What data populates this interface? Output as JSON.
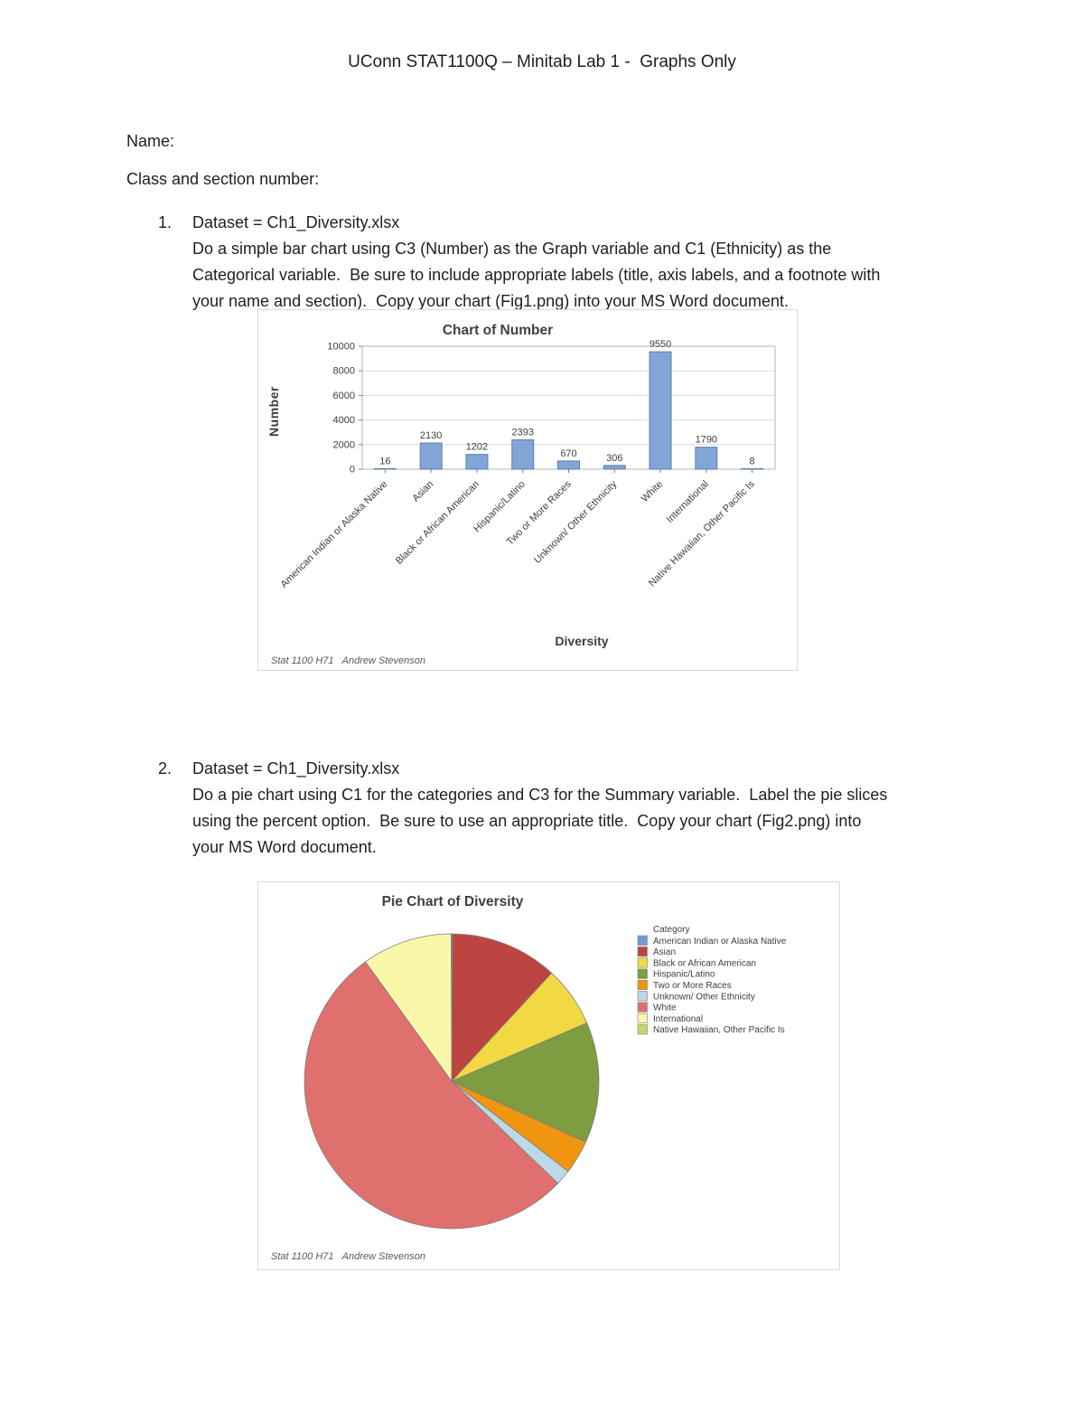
{
  "page": {
    "title": "UConn STAT1100Q – Minitab Lab 1 -  Graphs Only",
    "name_label": "Name:",
    "class_label": "Class and section number:"
  },
  "items": [
    {
      "number": "1.",
      "dataset": "Dataset = Ch1_Diversity.xlsx",
      "lines": [
        "Do a simple bar chart using C3 (Number) as the Graph variable and C1 (Ethnicity) as the",
        "Categorical variable.  Be sure to include appropriate labels (title, axis labels, and a footnote with",
        "your name and section).  Copy your chart (Fig1.png) into your MS Word document."
      ]
    },
    {
      "number": "2.",
      "dataset": "Dataset = Ch1_Diversity.xlsx",
      "lines": [
        "Do a pie chart using C1 for the categories and C3 for the Summary variable.  Label the pie slices",
        "using the percent option.  Be sure to use an appropriate title.  Copy your chart (Fig2.png) into",
        "your MS Word document."
      ]
    }
  ],
  "chart_data": [
    {
      "type": "bar",
      "title": "Chart of Number",
      "xlabel": "Diversity",
      "ylabel": "Number",
      "footnote": "Stat 1100 H71   Andrew Stevenson",
      "categories": [
        "American Indian or Alaska Native",
        "Asian",
        "Black or African American",
        "Hispanic/Latino",
        "Two or More Races",
        "Unknown/ Other Ethnicity",
        "White",
        "International",
        "Native Hawaiian, Other Pacific Is"
      ],
      "values": [
        16,
        2130,
        1202,
        2393,
        670,
        306,
        9550,
        1790,
        8
      ],
      "bar_labels": [
        "16",
        "2130",
        "1202",
        "2393",
        "670",
        "306",
        "9550",
        "1790",
        "8"
      ],
      "ylim": [
        0,
        10000
      ],
      "yticks": [
        0,
        2000,
        4000,
        6000,
        8000,
        10000
      ],
      "grid": "horizontal",
      "legend": "none",
      "bar_color": "#82A5D6",
      "bar_border": "#5B82B2"
    },
    {
      "type": "pie",
      "title": "Pie Chart of Diversity",
      "footnote": "Stat 1100 H71   Andrew Stevenson",
      "legend_title": "Category",
      "legend_position": "right",
      "series": [
        {
          "name": "American Indian or Alaska Native",
          "value": 16,
          "color": "#6E9BD1"
        },
        {
          "name": "Asian",
          "value": 2130,
          "color": "#BC4542"
        },
        {
          "name": "Black or African American",
          "value": 1202,
          "color": "#F2D843"
        },
        {
          "name": "Hispanic/Latino",
          "value": 2393,
          "color": "#7E9C40"
        },
        {
          "name": "Two or More Races",
          "value": 670,
          "color": "#F0950F"
        },
        {
          "name": "Unknown/ Other Ethnicity",
          "value": 306,
          "color": "#BCD9E7"
        },
        {
          "name": "White",
          "value": 9550,
          "color": "#E0706E"
        },
        {
          "name": "International",
          "value": 1790,
          "color": "#FAF8A8"
        },
        {
          "name": "Native Hawaiian, Other Pacific Is",
          "value": 8,
          "color": "#C2DB69"
        }
      ]
    }
  ]
}
